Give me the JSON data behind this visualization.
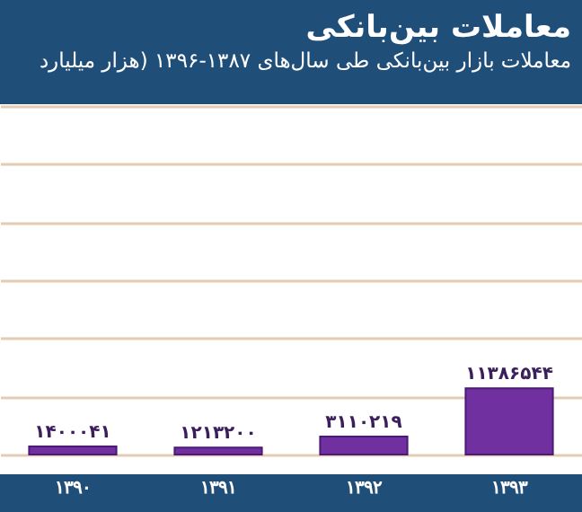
{
  "chart_data": {
    "type": "bar",
    "title": "معاملات بین‌بانکی",
    "subtitle": "معاملات بازار بین‌بانکی طی سال‌های ۱۳۸۷-۱۳۹۶ (هزار میلیارد",
    "categories": [
      "۱۳۹۰",
      "۱۳۹۱",
      "۱۳۹۲",
      "۱۳۹۳"
    ],
    "values": [
      1400041,
      1213200,
      3110219,
      11386544
    ],
    "value_labels": [
      "۱۴۰۰۰۴۱",
      "۱۲۱۳۲۰۰",
      "۳۱۱۰۲۱۹",
      "۱۱۳۸۶۵۴۴"
    ],
    "color": "#7030a0",
    "ylim": [
      0,
      60000000
    ],
    "yticks": [
      {
        "value": 0,
        "label": null
      },
      {
        "value": 10000000,
        "label": null
      },
      {
        "value": 20000000,
        "label": null
      },
      {
        "value": 30000000,
        "label": null
      },
      {
        "value": 40000000,
        "label": null
      },
      {
        "value": 50000000,
        "label": null
      },
      {
        "value": 60000000,
        "label": null
      }
    ],
    "tick_labels": "x",
    "grid": "y"
  }
}
